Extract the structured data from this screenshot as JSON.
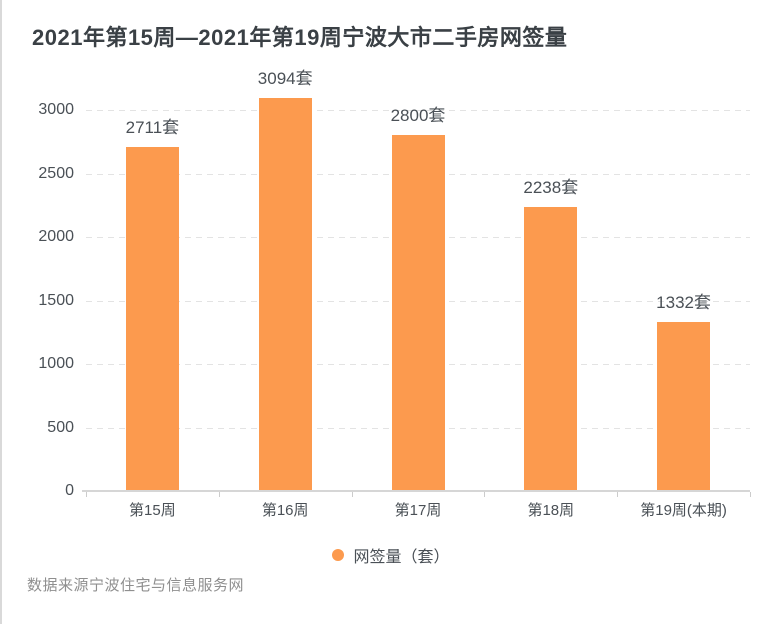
{
  "title": "2021年第15周—2021年第19周宁波大市二手房网签量",
  "source_note": "数据来源宁波住宅与信息服务网",
  "legend": {
    "label": "网签量（套）",
    "marker_color": "#FC9A4E"
  },
  "colors": {
    "bar": "#FC9A4E",
    "gridline": "#e3e3e3",
    "axis_line": "#d6d6d6",
    "text_dark": "#4a5056",
    "title_text": "#3a4045",
    "source_text": "#8f8f8f"
  },
  "chart_data": {
    "type": "bar",
    "title": "2021年第15周—2021年第19周宁波大市二手房网签量",
    "categories": [
      "第15周",
      "第16周",
      "第17周",
      "第18周",
      "第19周(本期)"
    ],
    "values": [
      2711,
      3094,
      2800,
      2238,
      1332
    ],
    "data_labels": [
      "2711套",
      "3094套",
      "2800套",
      "2238套",
      "1332套"
    ],
    "unit_suffix": "套",
    "series_name": "网签量（套）",
    "xlabel": "",
    "ylabel": "",
    "ylim": [
      0,
      3000
    ],
    "y_ticks": [
      0,
      500,
      1000,
      1500,
      2000,
      2500,
      3000
    ],
    "grid": "horizontal-dashed",
    "legend_position": "bottom-center",
    "bar_color": "#FC9A4E"
  }
}
